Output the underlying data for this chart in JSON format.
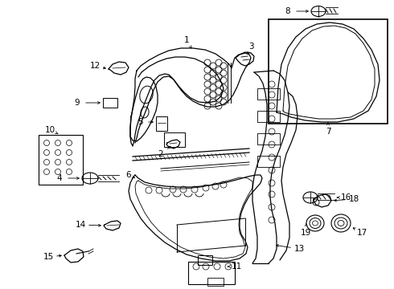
{
  "background_color": "#ffffff",
  "line_color": "#000000",
  "fig_width": 4.9,
  "fig_height": 3.6,
  "dpi": 100,
  "label_fontsize": 7.5
}
